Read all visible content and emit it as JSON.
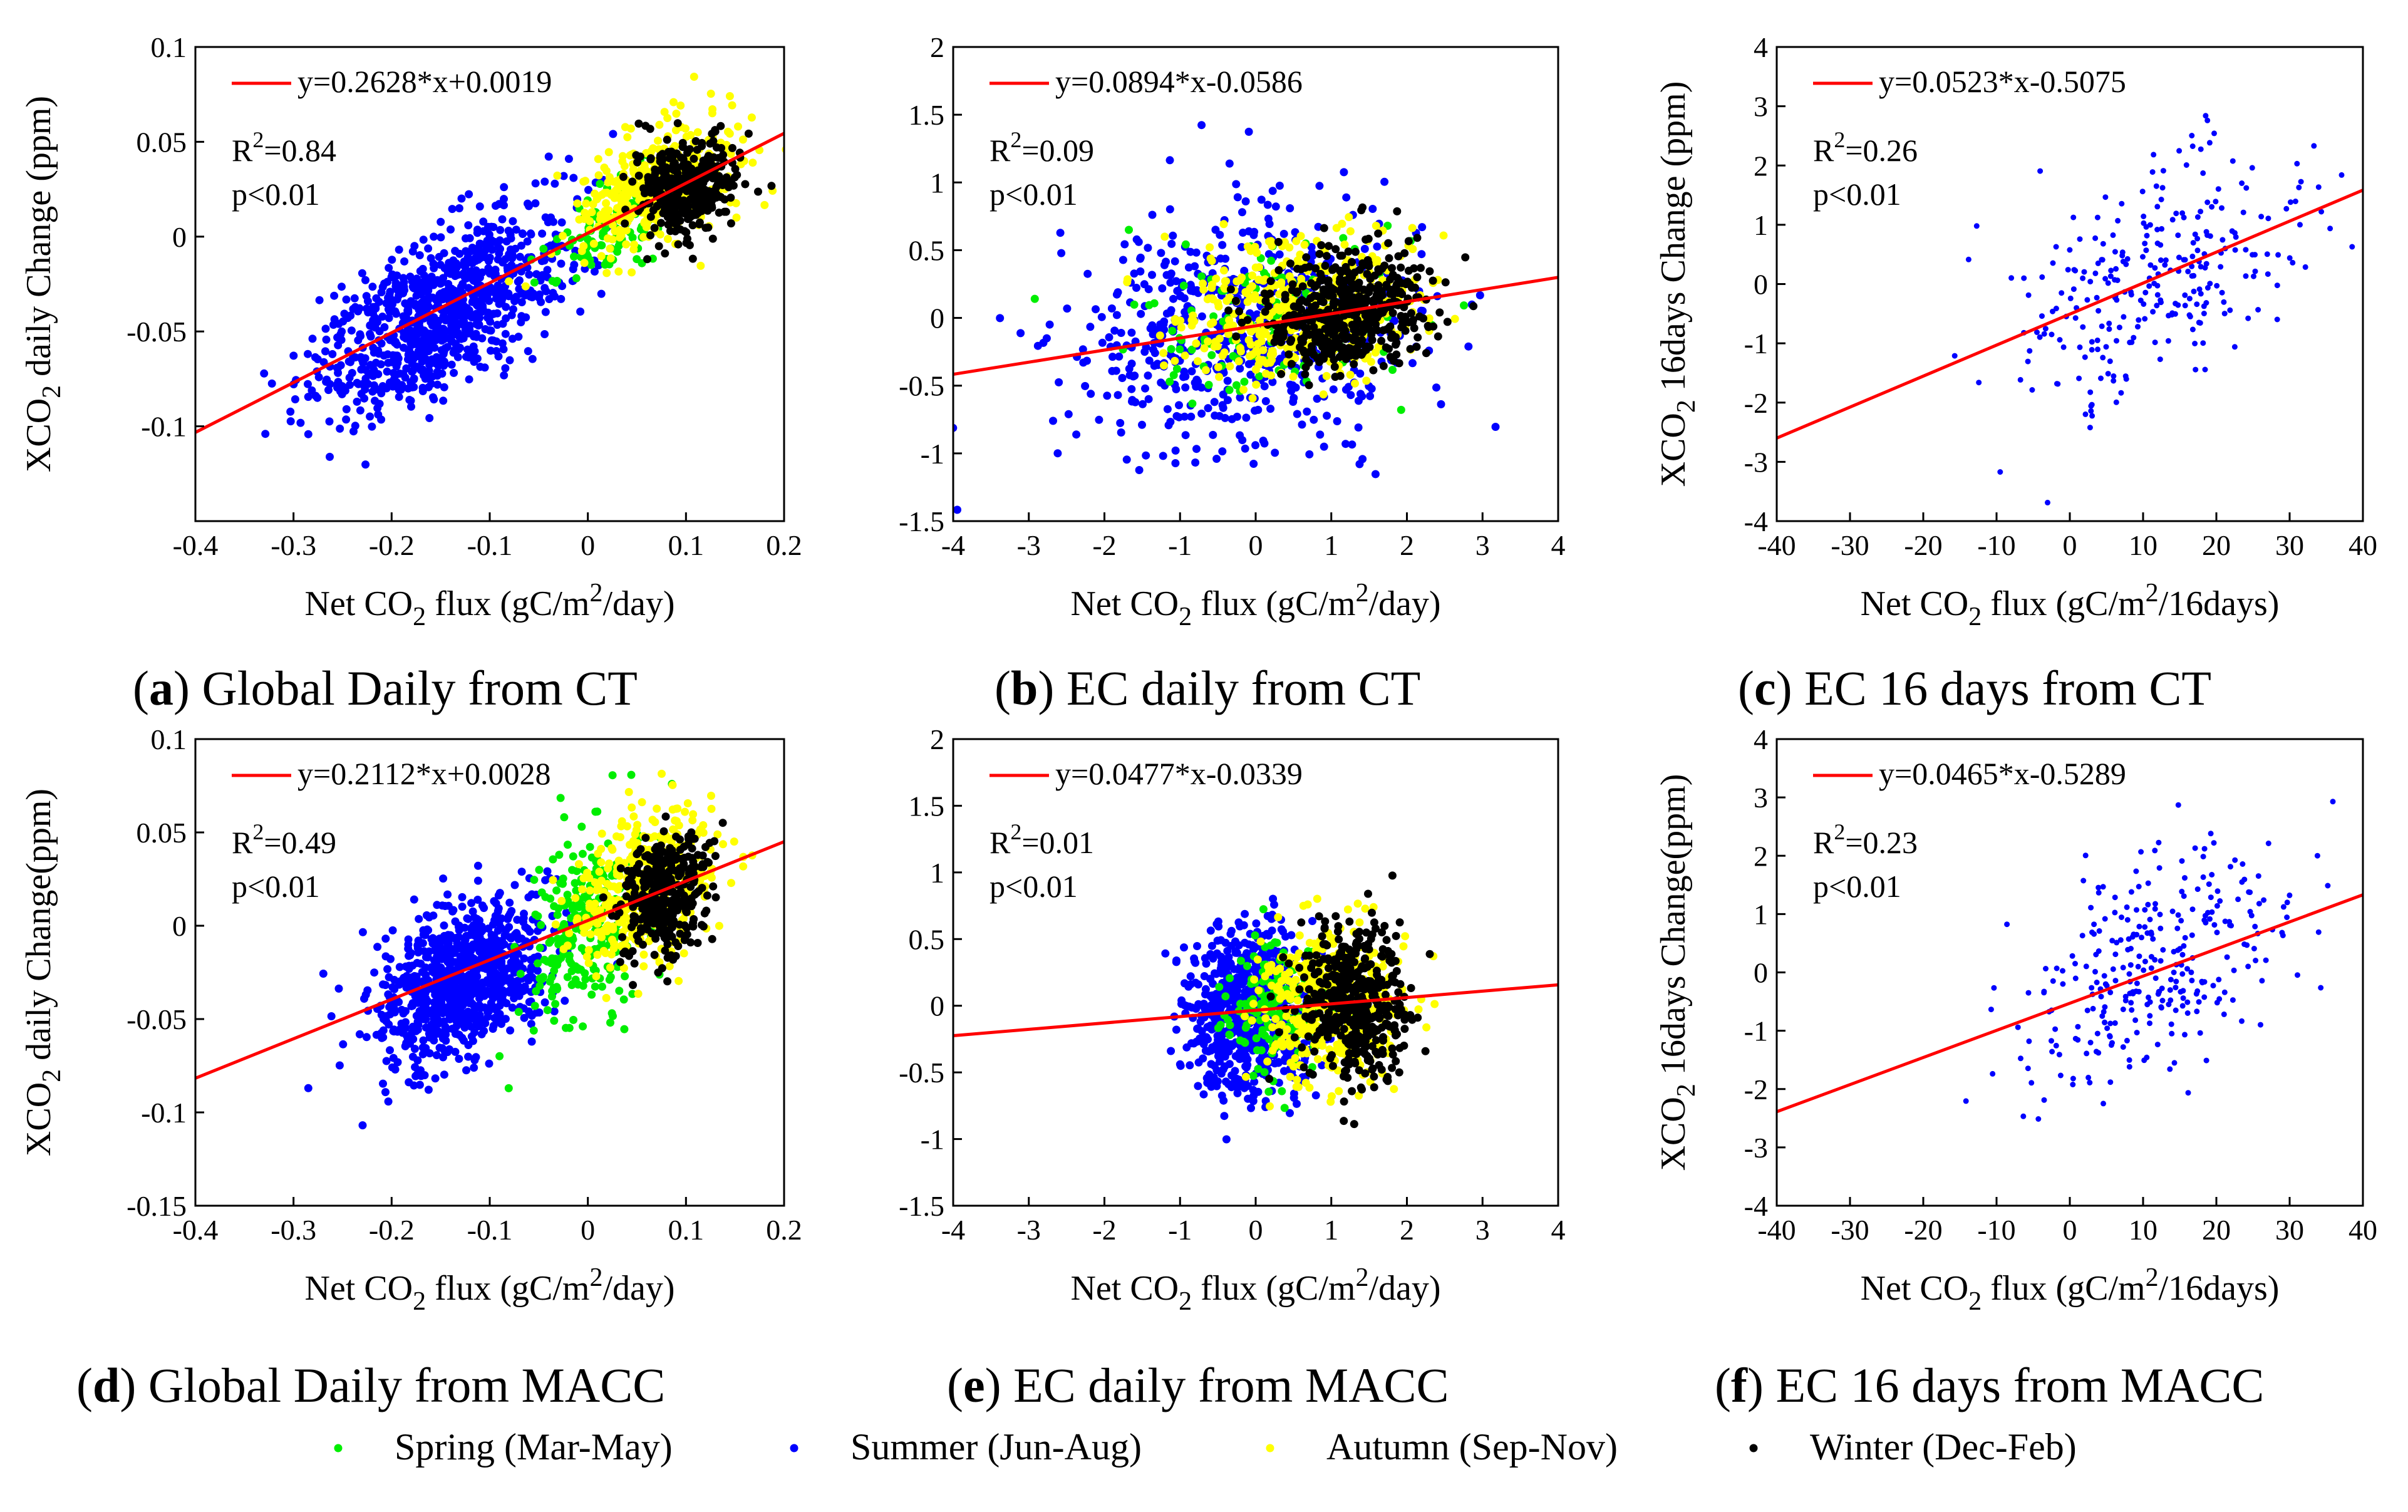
{
  "figure": {
    "legend": {
      "items": [
        {
          "label": "Spring (Mar-May)",
          "color": "#00ee00"
        },
        {
          "label": "Summer (Jun-Aug)",
          "color": "#0000ff"
        },
        {
          "label": "Autumn (Sep-Nov)",
          "color": "#ffff00"
        },
        {
          "label": "Winter (Dec-Feb)",
          "color": "#000000"
        }
      ]
    },
    "fit_color": "#ff0000"
  },
  "chart_data": [
    {
      "id": "a",
      "type": "scatter",
      "caption_letter": "a",
      "caption_rest": " Global Daily from CT",
      "xlim": [
        -0.4,
        0.2
      ],
      "ylim": [
        -0.15,
        0.1
      ],
      "xticks": [
        "-0.4",
        "-0.3",
        "-0.2",
        "-0.1",
        "0",
        "0.1",
        "0.2"
      ],
      "yticks": [
        "0.1",
        "0.05",
        "0",
        "-0.05",
        "-0.1"
      ],
      "ylabel_main": "XCO",
      "ylabel_sub": "2",
      "ylabel_rest": " daily Change (ppm)",
      "xlabel_pre": "Net CO",
      "xlabel_sub": "2",
      "xlabel_mid": " flux (gC/m",
      "xlabel_sup": "2",
      "xlabel_post": "/day)",
      "fit": {
        "slope": 0.2628,
        "intercept": 0.0019
      },
      "equation": "y=0.2628*x+0.0019",
      "r2": "=0.84",
      "p": "p<0.01",
      "series": [
        {
          "season": "Summer",
          "cx": -0.15,
          "cy": -0.04,
          "sx": 0.065,
          "sy": 0.02,
          "n": 900,
          "slope": 0.26
        },
        {
          "season": "Spring",
          "cx": 0.02,
          "cy": 0.005,
          "sx": 0.03,
          "sy": 0.012,
          "n": 120,
          "slope": 0.26
        },
        {
          "season": "Autumn",
          "cx": 0.07,
          "cy": 0.025,
          "sx": 0.04,
          "sy": 0.015,
          "n": 400,
          "slope": 0.2
        },
        {
          "season": "Winter",
          "cx": 0.1,
          "cy": 0.025,
          "sx": 0.025,
          "sy": 0.013,
          "n": 350,
          "slope": 0.1
        }
      ]
    },
    {
      "id": "b",
      "type": "scatter",
      "caption_letter": "b",
      "caption_rest": " EC daily from CT",
      "xlim": [
        -4,
        4
      ],
      "ylim": [
        -1.5,
        2
      ],
      "xticks": [
        "-4",
        "-3",
        "-2",
        "-1",
        "0",
        "1",
        "2",
        "3",
        "4"
      ],
      "yticks": [
        "2",
        "1.5",
        "1",
        "0.5",
        "0",
        "-0.5",
        "-1",
        "-1.5"
      ],
      "ylabel_main": "",
      "ylabel_sub": "",
      "ylabel_rest": "",
      "xlabel_pre": "Net CO",
      "xlabel_sub": "2",
      "xlabel_mid": " flux (gC/m",
      "xlabel_sup": "2",
      "xlabel_post": "/day)",
      "fit": {
        "slope": 0.0894,
        "intercept": -0.0586
      },
      "equation": "y=0.0894*x-0.0586",
      "r2": "=0.09",
      "p": "p<0.01",
      "series": [
        {
          "season": "Summer",
          "cx": -0.2,
          "cy": -0.1,
          "sx": 1.15,
          "sy": 0.42,
          "n": 650,
          "slope": 0.05
        },
        {
          "season": "Spring",
          "cx": 0.2,
          "cy": -0.05,
          "sx": 0.9,
          "sy": 0.3,
          "n": 120,
          "slope": 0.05
        },
        {
          "season": "Autumn",
          "cx": 0.6,
          "cy": 0.05,
          "sx": 0.8,
          "sy": 0.25,
          "n": 450,
          "slope": 0.05
        },
        {
          "season": "Winter",
          "cx": 1.2,
          "cy": 0.05,
          "sx": 0.55,
          "sy": 0.22,
          "n": 500,
          "slope": 0.05
        }
      ]
    },
    {
      "id": "c",
      "type": "scatter",
      "caption_letter": "c",
      "caption_rest": " EC 16 days from CT",
      "xlim": [
        -40,
        40
      ],
      "ylim": [
        -4,
        4
      ],
      "xticks": [
        "-40",
        "-30",
        "-20",
        "-10",
        "0",
        "10",
        "20",
        "30",
        "40"
      ],
      "yticks": [
        "4",
        "3",
        "2",
        "1",
        "0",
        "-1",
        "-2",
        "-3",
        "-4"
      ],
      "ylabel_main": "XCO",
      "ylabel_sub": "2",
      "ylabel_rest": " 16days Change (ppm)",
      "xlabel_pre": "Net CO",
      "xlabel_sub": "2",
      "xlabel_mid": " flux (gC/m",
      "xlabel_sup": "2",
      "xlabel_post": "/16days)",
      "fit": {
        "slope": 0.0523,
        "intercept": -0.5075
      },
      "equation": "y=0.0523*x-0.5075",
      "r2": "=0.26",
      "p": "p<0.01",
      "series": [
        {
          "season": "Summer",
          "cx": 12,
          "cy": 0.2,
          "sx": 10,
          "sy": 0.9,
          "n": 280,
          "slope": 0.05
        }
      ]
    },
    {
      "id": "d",
      "type": "scatter",
      "caption_letter": "d",
      "caption_rest": " Global Daily from MACC",
      "xlim": [
        -0.4,
        0.2
      ],
      "ylim": [
        -0.15,
        0.1
      ],
      "xticks": [
        "-0.4",
        "-0.3",
        "-0.2",
        "-0.1",
        "0",
        "0.1",
        "0.2"
      ],
      "yticks": [
        "0.1",
        "0.05",
        "0",
        "-0.05",
        "-0.1",
        "-0.15"
      ],
      "ylabel_main": "XCO",
      "ylabel_sub": "2",
      "ylabel_rest": " daily Change(ppm)",
      "xlabel_pre": "Net CO",
      "xlabel_sub": "2",
      "xlabel_mid": " flux (gC/m",
      "xlabel_sup": "2",
      "xlabel_post": "/day)",
      "fit": {
        "slope": 0.2112,
        "intercept": 0.0028
      },
      "equation": "y=0.2112*x+0.0028",
      "r2": "=0.49",
      "p": "p<0.01",
      "series": [
        {
          "season": "Summer",
          "cx": -0.13,
          "cy": -0.03,
          "sx": 0.045,
          "sy": 0.02,
          "n": 900,
          "slope": 0.2
        },
        {
          "season": "Spring",
          "cx": 0.0,
          "cy": 0.0,
          "sx": 0.03,
          "sy": 0.025,
          "n": 250,
          "slope": 0.3
        },
        {
          "season": "Autumn",
          "cx": 0.06,
          "cy": 0.02,
          "sx": 0.035,
          "sy": 0.02,
          "n": 400,
          "slope": 0.2
        },
        {
          "season": "Winter",
          "cx": 0.075,
          "cy": 0.015,
          "sx": 0.022,
          "sy": 0.017,
          "n": 350,
          "slope": 0.2
        }
      ]
    },
    {
      "id": "e",
      "type": "scatter",
      "caption_letter": "e",
      "caption_rest": " EC daily from MACC",
      "xlim": [
        -4,
        4
      ],
      "ylim": [
        -1.5,
        2
      ],
      "xticks": [
        "-4",
        "-3",
        "-2",
        "-1",
        "0",
        "1",
        "2",
        "3",
        "4"
      ],
      "yticks": [
        "2",
        "1.5",
        "1",
        "0.5",
        "0",
        "-0.5",
        "-1",
        "-1.5"
      ],
      "ylabel_main": "",
      "ylabel_sub": "",
      "ylabel_rest": "",
      "xlabel_pre": "Net CO",
      "xlabel_sub": "2",
      "xlabel_mid": " flux (gC/m",
      "xlabel_sup": "2",
      "xlabel_post": "/day)",
      "fit": {
        "slope": 0.0477,
        "intercept": -0.0339
      },
      "equation": "y=0.0477*x-0.0339",
      "r2": "=0.01",
      "p": "p<0.01",
      "series": [
        {
          "season": "Summer",
          "cx": -0.1,
          "cy": -0.05,
          "sx": 0.4,
          "sy": 0.32,
          "n": 700,
          "slope": 0.0
        },
        {
          "season": "Spring",
          "cx": 0.3,
          "cy": -0.05,
          "sx": 0.35,
          "sy": 0.25,
          "n": 150,
          "slope": 0.0
        },
        {
          "season": "Autumn",
          "cx": 1.0,
          "cy": 0.0,
          "sx": 0.45,
          "sy": 0.3,
          "n": 450,
          "slope": 0.0
        },
        {
          "season": "Winter",
          "cx": 1.3,
          "cy": 0.0,
          "sx": 0.35,
          "sy": 0.28,
          "n": 450,
          "slope": 0.0
        }
      ]
    },
    {
      "id": "f",
      "type": "scatter",
      "caption_letter": "f",
      "caption_rest": " EC 16 days from MACC",
      "xlim": [
        -40,
        40
      ],
      "ylim": [
        -4,
        4
      ],
      "xticks": [
        "-40",
        "-30",
        "-20",
        "-10",
        "0",
        "10",
        "20",
        "30",
        "40"
      ],
      "yticks": [
        "4",
        "3",
        "2",
        "1",
        "0",
        "-1",
        "-2",
        "-3",
        "-4"
      ],
      "ylabel_main": "XCO",
      "ylabel_sub": "2",
      "ylabel_rest": " 16days Change(ppm)",
      "xlabel_pre": "Net CO",
      "xlabel_sub": "2",
      "xlabel_mid": " flux (gC/m",
      "xlabel_sup": "2",
      "xlabel_post": "/16days)",
      "fit": {
        "slope": 0.0465,
        "intercept": -0.5289
      },
      "equation": "y=0.0465*x-0.5289",
      "r2": "=0.23",
      "p": "p<0.01",
      "series": [
        {
          "season": "Summer",
          "cx": 12,
          "cy": 0.1,
          "sx": 10,
          "sy": 0.9,
          "n": 300,
          "slope": 0.05
        }
      ]
    }
  ]
}
